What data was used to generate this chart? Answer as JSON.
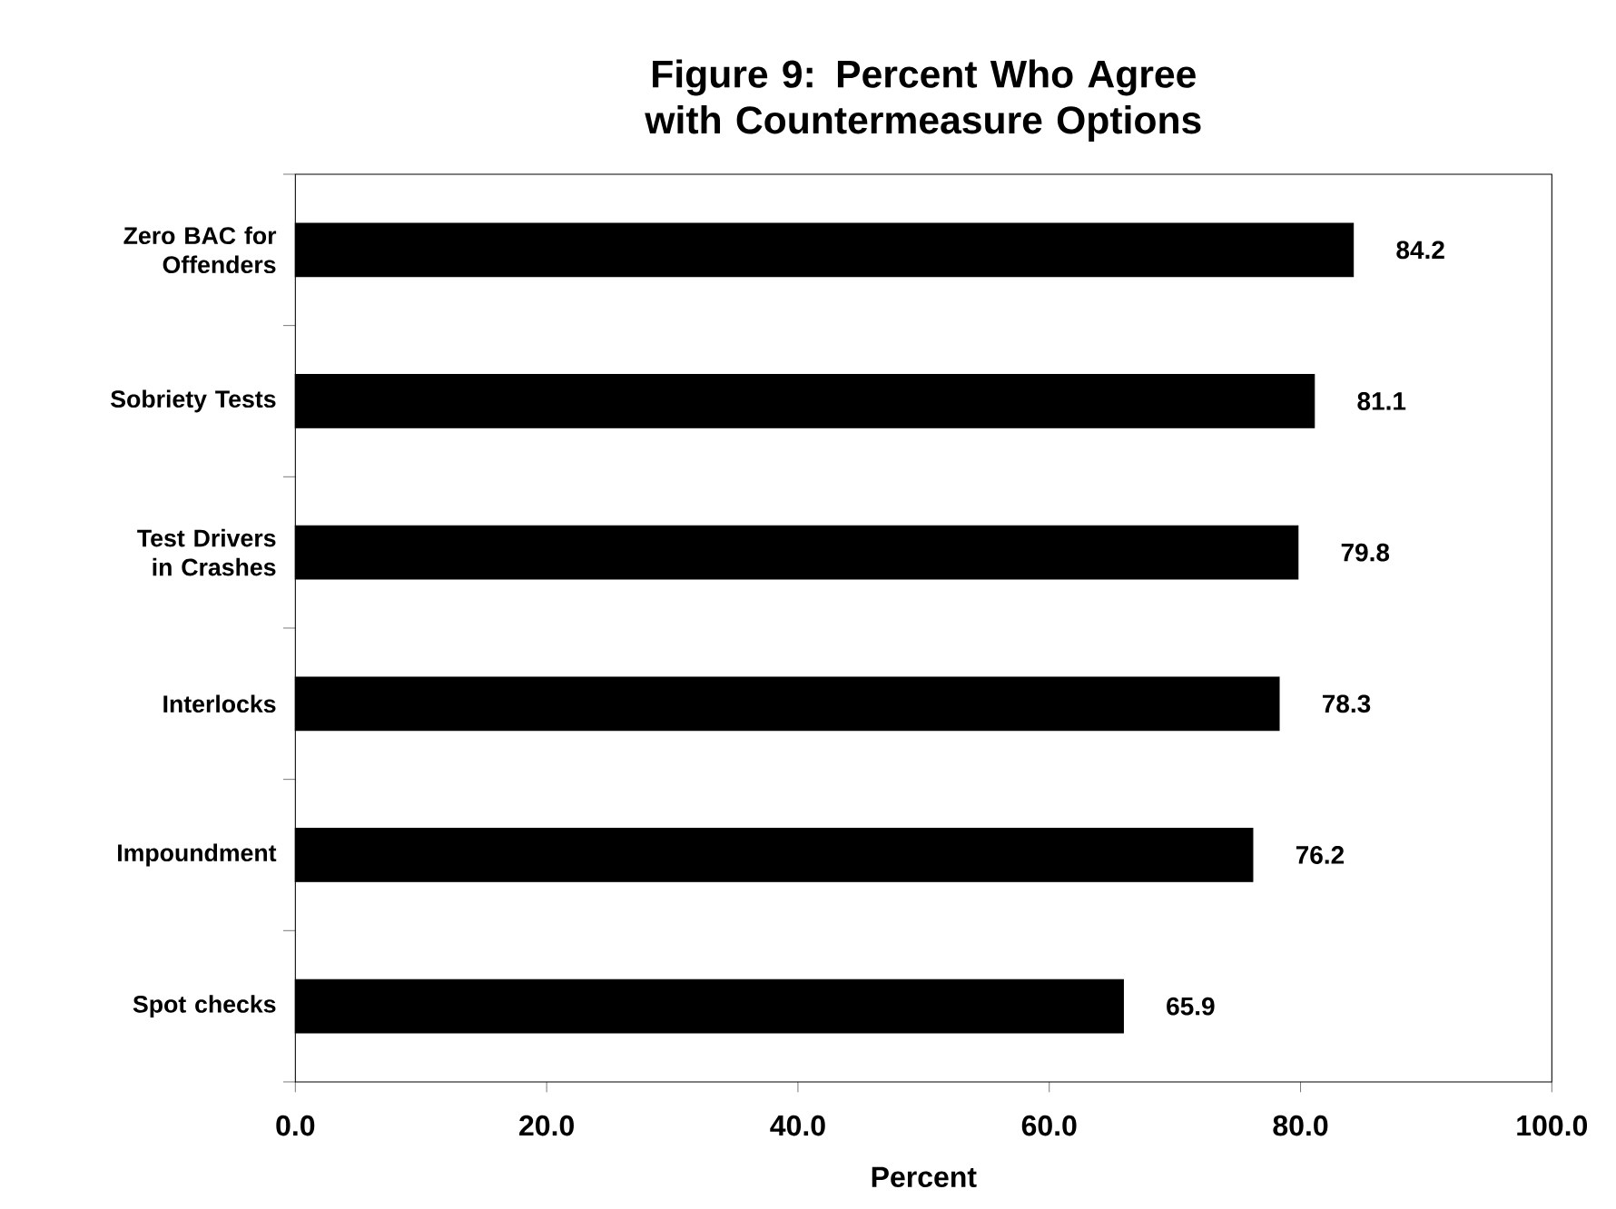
{
  "chart_data": {
    "type": "bar",
    "orientation": "horizontal",
    "title": "Figure 9:  Percent Who Agree with Countermeasure Options",
    "xlabel": "Percent",
    "categories": [
      "Zero BAC for Offenders",
      "Sobriety Tests",
      "Test Drivers in Crashes",
      "Interlocks",
      "Impoundment",
      "Spot checks"
    ],
    "values": [
      84.2,
      81.1,
      79.8,
      78.3,
      76.2,
      65.9
    ],
    "color": "#000000",
    "xlim": [
      0,
      100
    ],
    "xticks": [
      {
        "value": 0,
        "label": "0.0"
      },
      {
        "value": 20,
        "label": "20.0"
      },
      {
        "value": 40,
        "label": "40.0"
      },
      {
        "value": 60,
        "label": "60.0"
      },
      {
        "value": 80,
        "label": "80.0"
      },
      {
        "value": 100,
        "label": "100.0"
      }
    ],
    "data_labels": true
  }
}
